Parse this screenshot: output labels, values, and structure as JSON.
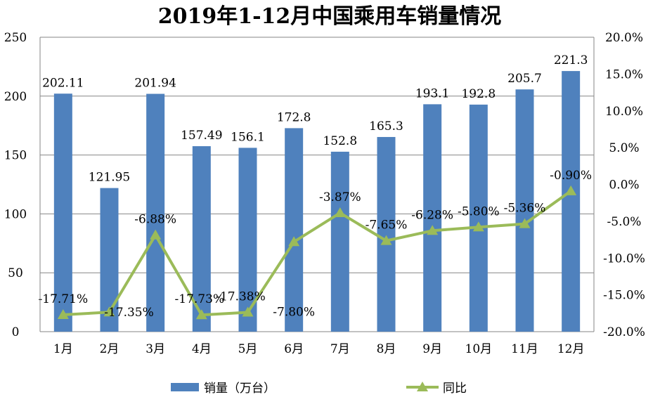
{
  "chart_data": {
    "type": "bar+line",
    "title": "2019年1-12月中国乘用车销量情况",
    "categories": [
      "1月",
      "2月",
      "3月",
      "4月",
      "5月",
      "6月",
      "7月",
      "8月",
      "9月",
      "10月",
      "11月",
      "12月"
    ],
    "series": [
      {
        "name": "销量（万台）",
        "type": "bar",
        "axis": "left",
        "color": "#4f81bd",
        "values": [
          202.11,
          121.95,
          201.94,
          157.49,
          156.1,
          172.8,
          152.8,
          165.3,
          193.1,
          192.8,
          205.7,
          221.3
        ],
        "labels": [
          "202.11",
          "121.95",
          "201.94",
          "157.49",
          "156.1",
          "172.8",
          "152.8",
          "165.3",
          "193.1",
          "192.8",
          "205.7",
          "221.3"
        ]
      },
      {
        "name": "同比",
        "type": "line",
        "axis": "right",
        "color": "#9bbb59",
        "marker": "triangle",
        "values": [
          -17.71,
          -17.35,
          -6.88,
          -17.73,
          -17.38,
          -7.8,
          -3.87,
          -7.65,
          -6.28,
          -5.8,
          -5.36,
          -0.9
        ],
        "labels": [
          "-17.71%",
          "-17.35%",
          "-6.88%",
          "-17.73%",
          "-17.38%",
          "-7.80%",
          "-3.87%",
          "-7.65%",
          "-6.28%",
          "-5.80%",
          "-5.36%",
          "-0.90%"
        ]
      }
    ],
    "y_left": {
      "lim": [
        0,
        250
      ],
      "ticks": [
        "0",
        "50",
        "100",
        "150",
        "200",
        "250"
      ]
    },
    "y_right": {
      "lim": [
        -20,
        20
      ],
      "ticks": [
        "-20.0%",
        "-15.0%",
        "-10.0%",
        "-5.0%",
        "0.0%",
        "5.0%",
        "10.0%",
        "15.0%",
        "20.0%"
      ]
    },
    "grid": true,
    "legend": "bottom"
  }
}
